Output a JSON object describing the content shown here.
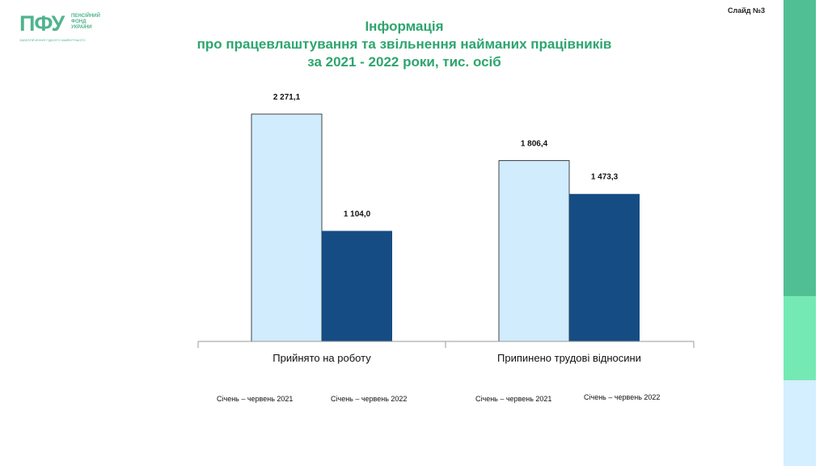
{
  "header": {
    "logo_mark": "ПФУ",
    "logo_lines": [
      "ПЕНСІЙНИЙ",
      "ФОНД",
      "УКРАЇНИ"
    ],
    "logo_tagline": "ЗАБЕЗПЕЧЕННЯ ГІДНОГО МАЙБУТНЬОГО",
    "slide_number": "Слайд №3",
    "title_lines": [
      "Інформація",
      "про працевлаштування та звільнення найманих працівників",
      "за 2021 - 2022  роки,  тис. осіб"
    ]
  },
  "colors": {
    "accent": "#2ea56e",
    "series_2021": "#d0ecfd",
    "series_2022": "#154c83"
  },
  "chart_data": {
    "type": "bar",
    "title": "Інформація про працевлаштування та звільнення найманих працівників за 2021 - 2022 роки, тис. осіб",
    "categories": [
      "Прийнято на роботу",
      "Припинено трудові відносини"
    ],
    "series": [
      {
        "name": "Січень – червень 2021",
        "values": [
          2271.1,
          1806.4
        ],
        "labels": [
          "2 271,1",
          "1 806,4"
        ]
      },
      {
        "name": "Січень – червень 2022",
        "values": [
          1104.0,
          1473.3
        ],
        "labels": [
          "1 104,0",
          "1 473,3"
        ]
      }
    ],
    "ylim": [
      0,
      2271.1
    ],
    "grid": false,
    "legend_placement": "bottom"
  }
}
